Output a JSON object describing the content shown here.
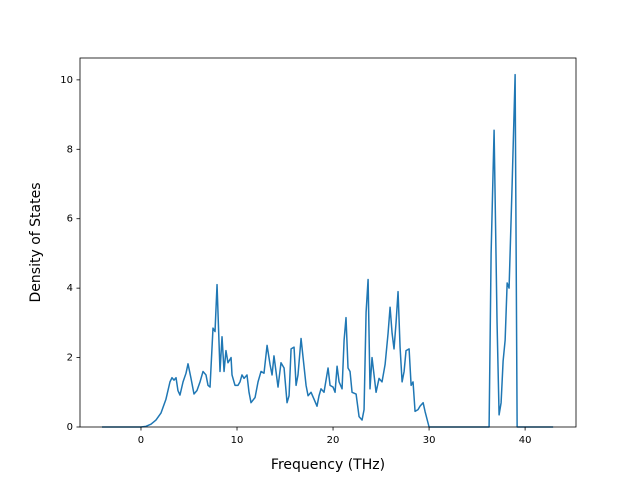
{
  "chart_data": {
    "type": "line",
    "xlabel": "Frequency (THz)",
    "ylabel": "Density of States",
    "color": "#1f77b4",
    "xlim": [
      -6.35,
      45.3
    ],
    "xticks": [
      0,
      10,
      20,
      30,
      40
    ],
    "ylim": [
      0,
      10.63
    ],
    "yticks": [
      0,
      2,
      4,
      6,
      8,
      10
    ],
    "x": [
      -4.06,
      0,
      0.52,
      1.04,
      1.56,
      2.08,
      2.6,
      3.02,
      3.23,
      3.44,
      3.65,
      3.85,
      4.06,
      4.38,
      4.69,
      4.9,
      5.21,
      5.52,
      5.83,
      6.15,
      6.46,
      6.77,
      6.98,
      7.19,
      7.5,
      7.71,
      7.92,
      8.23,
      8.44,
      8.65,
      8.85,
      9.06,
      9.38,
      9.48,
      9.79,
      10.1,
      10.31,
      10.52,
      10.73,
      11.04,
      11.25,
      11.46,
      11.88,
      12.19,
      12.5,
      12.81,
      13.13,
      13.44,
      13.65,
      13.85,
      14.27,
      14.58,
      14.9,
      15.21,
      15.42,
      15.63,
      15.94,
      16.15,
      16.35,
      16.67,
      16.88,
      17.19,
      17.4,
      17.71,
      18.02,
      18.33,
      18.54,
      18.75,
      19.06,
      19.48,
      19.69,
      20.0,
      20.21,
      20.42,
      20.63,
      20.94,
      21.15,
      21.35,
      21.56,
      21.77,
      21.98,
      22.4,
      22.71,
      23.02,
      23.23,
      23.44,
      23.65,
      23.85,
      24.06,
      24.48,
      24.79,
      25.1,
      25.42,
      25.73,
      25.94,
      26.15,
      26.35,
      26.56,
      26.77,
      26.98,
      27.19,
      27.4,
      27.6,
      27.92,
      28.13,
      28.33,
      28.54,
      28.85,
      29.06,
      29.38,
      29.58,
      30.0,
      36.25,
      36.46,
      36.77,
      37.08,
      37.29,
      37.5,
      37.71,
      37.92,
      38.13,
      38.33,
      38.65,
      38.96,
      39.17,
      42.92
    ],
    "values": [
      0,
      0,
      0.02,
      0.08,
      0.2,
      0.4,
      0.8,
      1.3,
      1.42,
      1.35,
      1.42,
      1.05,
      0.92,
      1.3,
      1.55,
      1.82,
      1.4,
      0.95,
      1.05,
      1.3,
      1.6,
      1.5,
      1.2,
      1.15,
      2.85,
      2.75,
      4.1,
      1.6,
      2.6,
      1.6,
      2.2,
      1.85,
      2.0,
      1.5,
      1.2,
      1.2,
      1.3,
      1.5,
      1.4,
      1.5,
      1.0,
      0.7,
      0.85,
      1.3,
      1.6,
      1.55,
      2.35,
      1.8,
      1.5,
      2.05,
      1.15,
      1.85,
      1.7,
      0.7,
      0.9,
      2.25,
      2.3,
      1.2,
      1.5,
      2.55,
      2.0,
      1.2,
      0.9,
      1.0,
      0.8,
      0.6,
      0.9,
      1.1,
      1.0,
      1.7,
      1.2,
      1.15,
      1.0,
      1.75,
      1.3,
      1.1,
      2.5,
      3.15,
      1.7,
      1.6,
      1.0,
      0.95,
      0.3,
      0.2,
      0.5,
      3.3,
      4.25,
      1.1,
      2.0,
      1.0,
      1.4,
      1.3,
      1.8,
      2.7,
      3.45,
      2.7,
      2.25,
      3.0,
      3.9,
      2.3,
      1.3,
      1.6,
      2.2,
      2.25,
      1.2,
      1.3,
      0.45,
      0.5,
      0.6,
      0.7,
      0.45,
      0,
      0,
      5.0,
      8.55,
      3.0,
      0.35,
      0.7,
      1.9,
      2.5,
      4.15,
      4.0,
      7.0,
      10.15,
      0,
      0
    ]
  }
}
